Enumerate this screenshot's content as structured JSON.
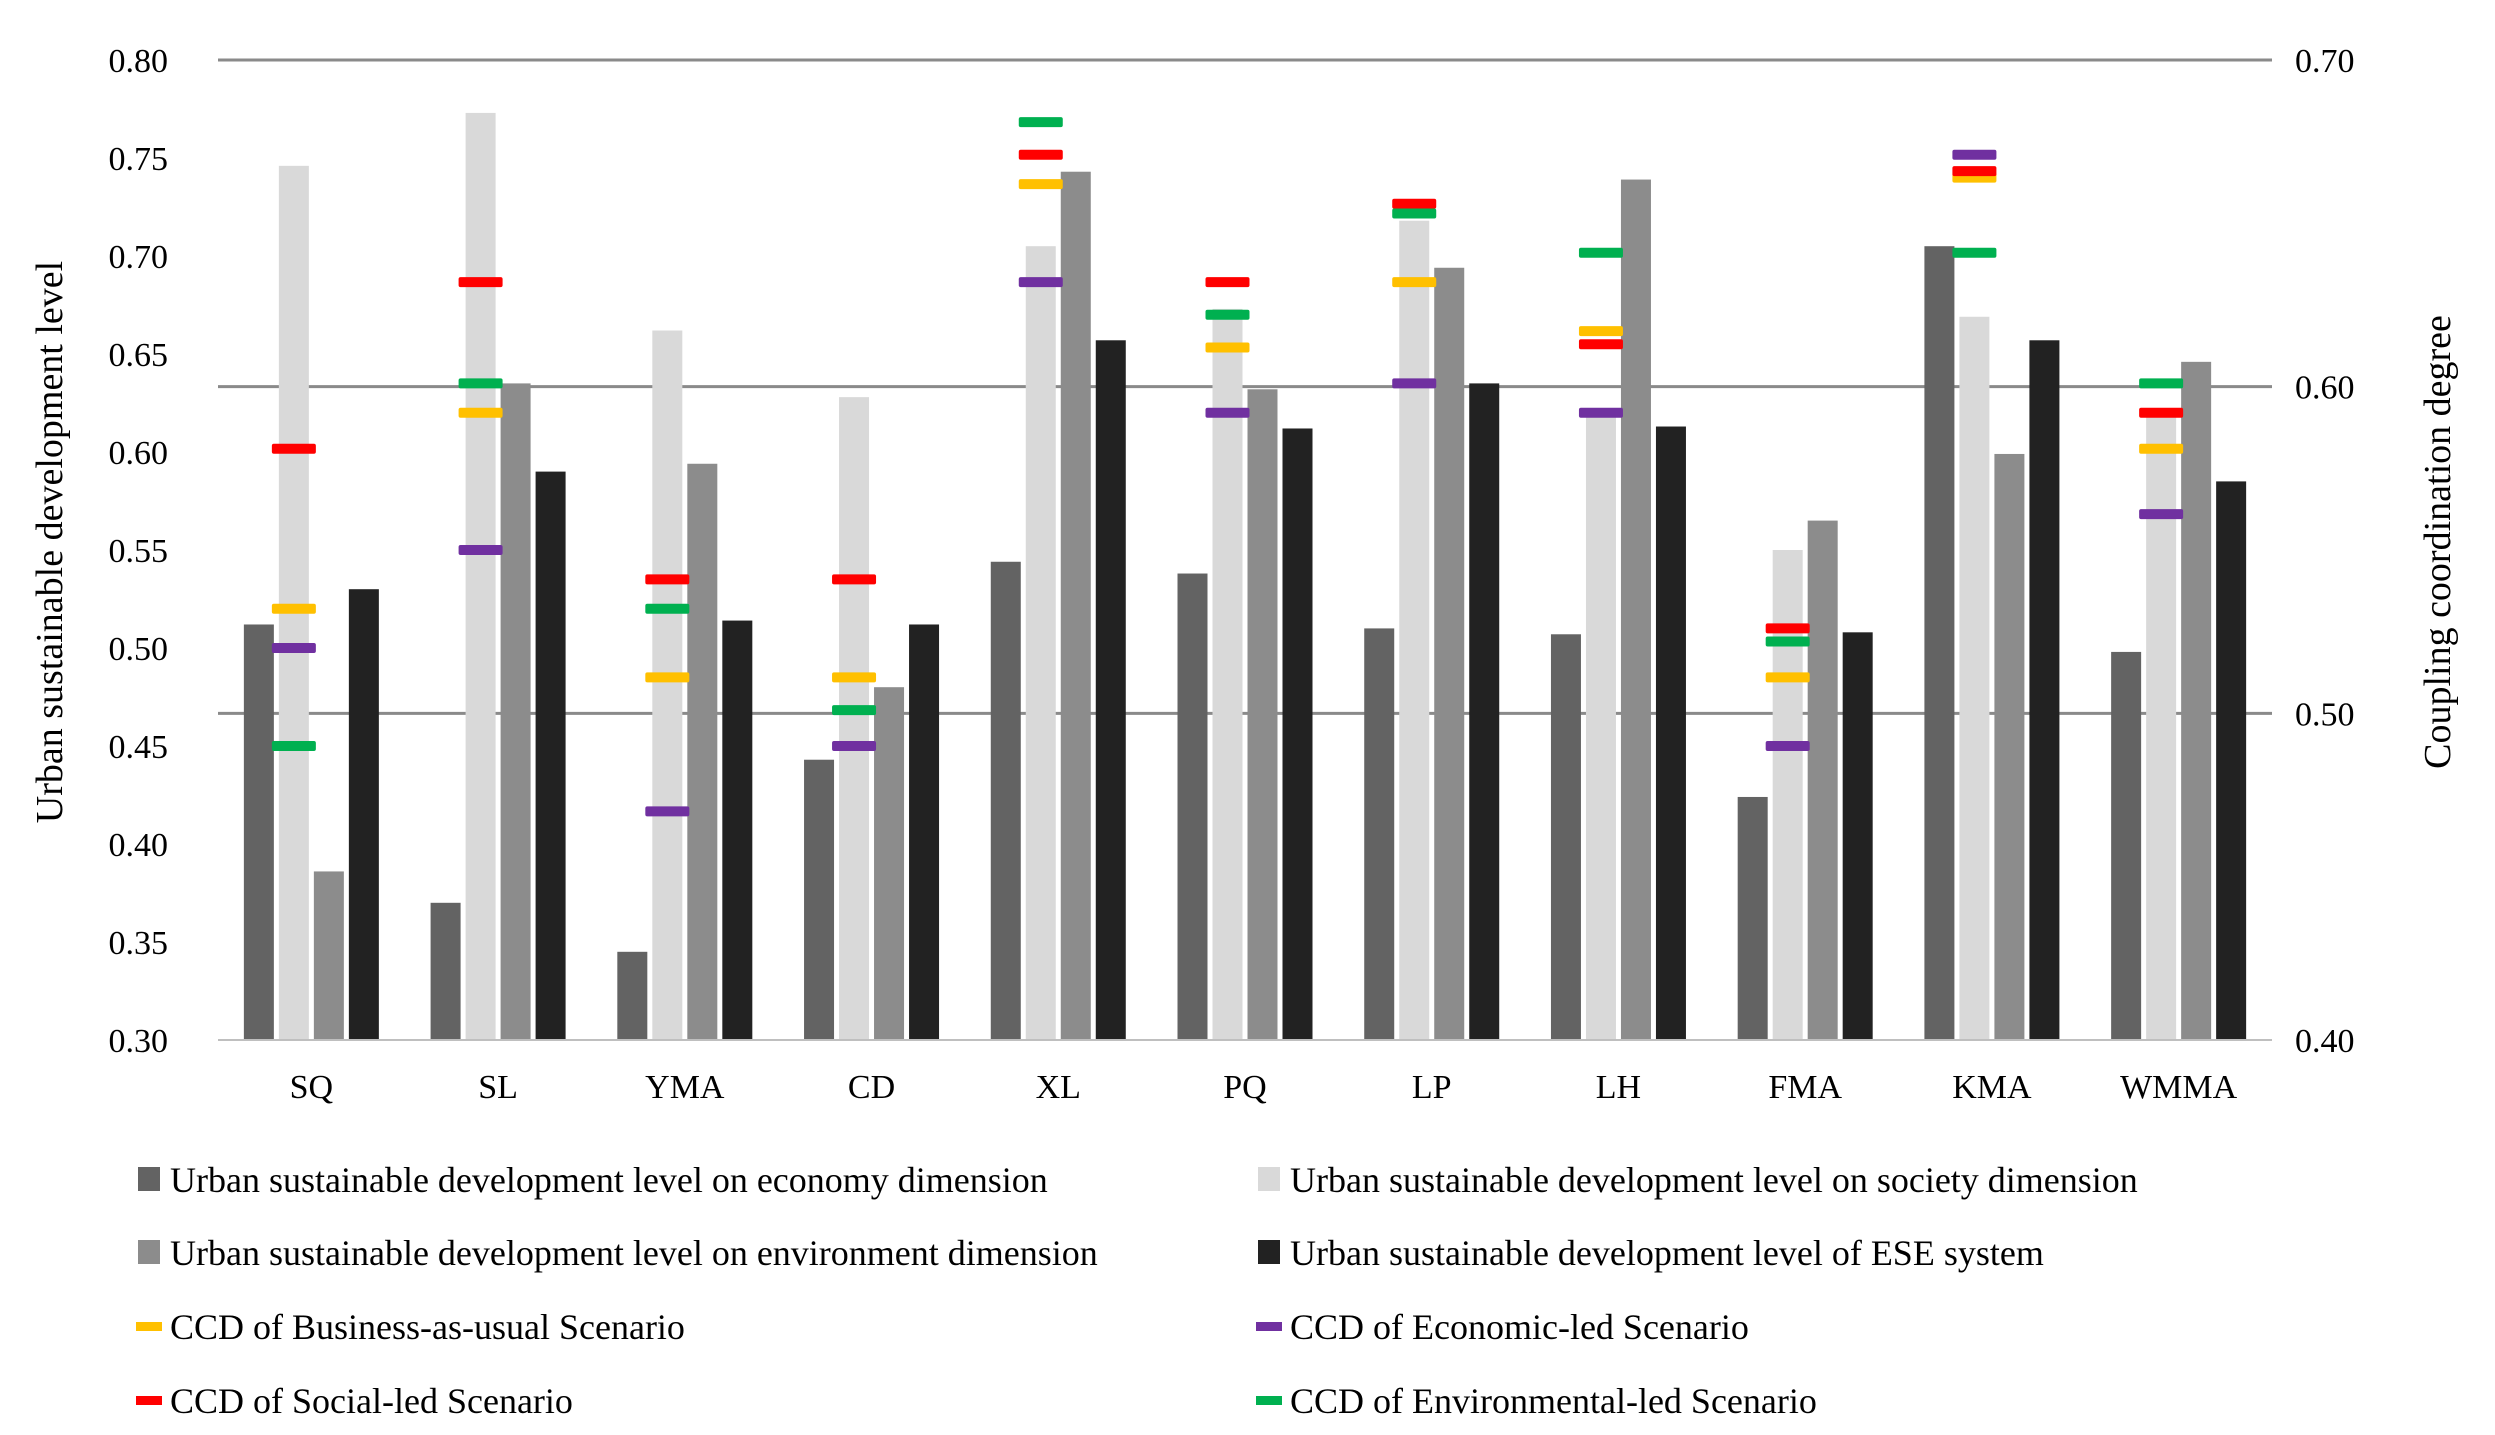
{
  "chart_data": {
    "type": "bar",
    "categories": [
      "SQ",
      "SL",
      "YMA",
      "CD",
      "XL",
      "PQ",
      "LP",
      "LH",
      "FMA",
      "KMA",
      "WMMA"
    ],
    "ylabel": "Urban sustainable development level",
    "y2label": "Coupling coordination degree",
    "ylim": [
      0.3,
      0.8
    ],
    "y2lim": [
      0.4,
      0.7
    ],
    "y_ticks": [
      "0.30",
      "0.35",
      "0.40",
      "0.45",
      "0.50",
      "0.55",
      "0.60",
      "0.65",
      "0.70",
      "0.75",
      "0.80"
    ],
    "y2_ticks": [
      "0.40",
      "0.50",
      "0.60",
      "0.70"
    ],
    "gridlines_y2": [
      0.5,
      0.6,
      0.7
    ],
    "series": [
      {
        "name": "Urban sustainable development level on economy dimension",
        "color": "#636363",
        "values": [
          0.512,
          0.37,
          0.345,
          0.443,
          0.544,
          0.538,
          0.51,
          0.507,
          0.424,
          0.705,
          0.498
        ]
      },
      {
        "name": "Urban sustainable development level on society dimension",
        "color": "#d9d9d9",
        "values": [
          0.746,
          0.773,
          0.662,
          0.628,
          0.705,
          0.673,
          0.718,
          0.62,
          0.55,
          0.669,
          0.62
        ]
      },
      {
        "name": "Urban sustainable development level on environment dimension",
        "color": "#8c8c8c",
        "values": [
          0.386,
          0.635,
          0.594,
          0.48,
          0.743,
          0.632,
          0.694,
          0.739,
          0.565,
          0.599,
          0.646
        ]
      },
      {
        "name": "Urban sustainable development level of ESE system",
        "color": "#222222",
        "values": [
          0.53,
          0.59,
          0.514,
          0.512,
          0.657,
          0.612,
          0.635,
          0.613,
          0.508,
          0.657,
          0.585
        ]
      }
    ],
    "ccd_series": [
      {
        "name": "CCD of Business-as-usual Scenario",
        "color": "#ffc000",
        "values": [
          0.532,
          0.592,
          0.511,
          0.511,
          0.662,
          0.612,
          0.632,
          0.617,
          0.511,
          0.664,
          0.581
        ]
      },
      {
        "name": "CCD of Economic-led Scenario",
        "color": "#7030a0",
        "values": [
          0.52,
          0.55,
          0.47,
          0.49,
          0.632,
          0.592,
          0.601,
          0.592,
          0.49,
          0.671,
          0.561
        ]
      },
      {
        "name": "CCD of Social-led Scenario",
        "color": "#ff0000",
        "values": [
          0.581,
          0.632,
          0.541,
          0.541,
          0.671,
          0.632,
          0.656,
          0.613,
          0.526,
          0.666,
          0.592
        ]
      },
      {
        "name": "CCD of Environmental-led Scenario",
        "color": "#00b050",
        "values": [
          0.49,
          0.601,
          0.532,
          0.501,
          0.681,
          0.622,
          0.653,
          0.641,
          0.522,
          0.641,
          0.601
        ]
      }
    ],
    "legend_position": "bottom"
  }
}
